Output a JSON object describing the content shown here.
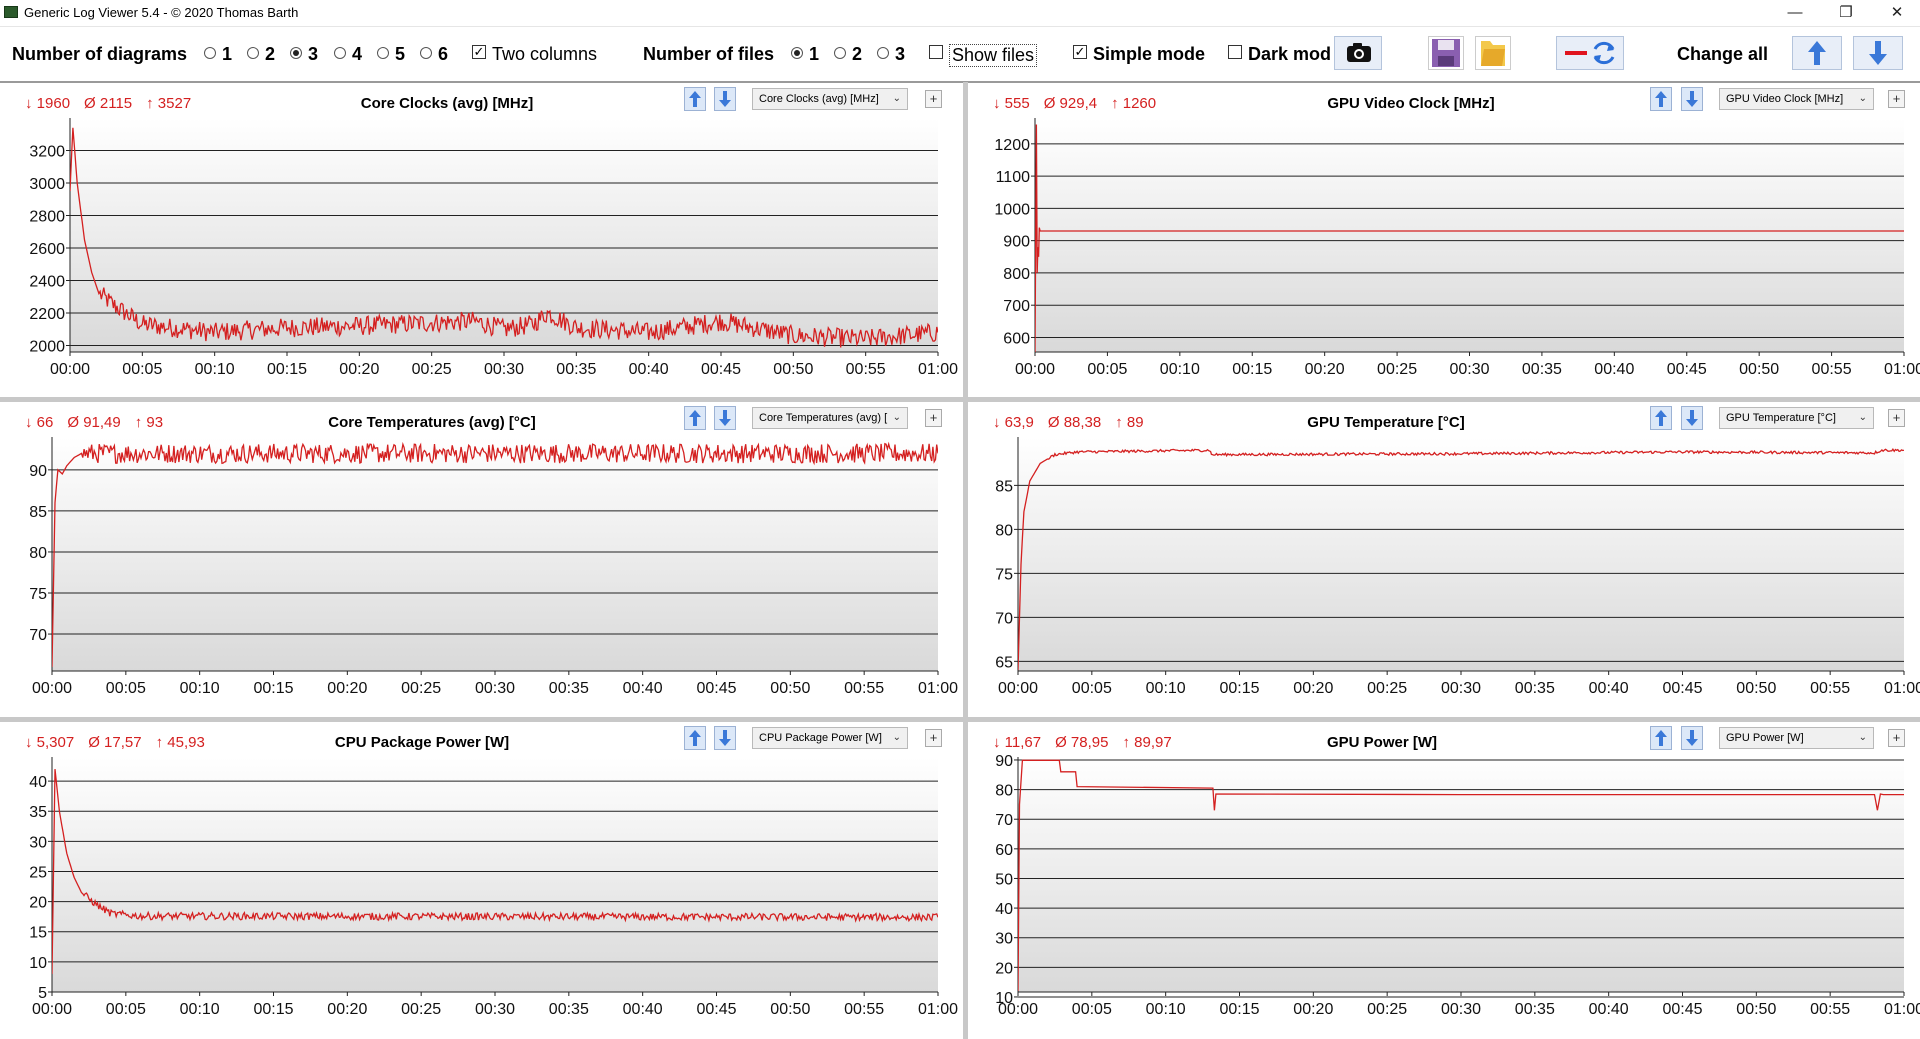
{
  "window": {
    "title": "Generic Log Viewer 5.4 - © 2020 Thomas Barth",
    "min_glyph": "—",
    "restore_glyph": "❐",
    "close_glyph": "✕"
  },
  "toolbar": {
    "diagrams_label": "Number of diagrams",
    "diagram_options": [
      "1",
      "2",
      "3",
      "4",
      "5",
      "6"
    ],
    "diagram_selected": "3",
    "two_columns_label": "Two columns",
    "two_columns_checked": true,
    "files_label": "Number of files",
    "file_options": [
      "1",
      "2",
      "3"
    ],
    "file_selected": "1",
    "show_files_label": "Show files",
    "show_files_checked": false,
    "simple_mode_label": "Simple mode",
    "simple_mode_checked": true,
    "dark_mode_label": "Dark mod",
    "dark_mode_checked": false,
    "change_all_label": "Change all",
    "icons": [
      "camera-icon",
      "save-icon",
      "folder-icon",
      "line-color-icon",
      "swap-icon",
      "arrow-up-icon",
      "arrow-down-icon"
    ]
  },
  "colors": {
    "series": "#d42020",
    "accent": "#3a78d8"
  },
  "panels": [
    {
      "id": "core-clocks",
      "stats": {
        "min": "↓ 1960",
        "avg": "Ø 2115",
        "max": "↑ 3527"
      },
      "title": "Core Clocks (avg) [MHz]",
      "select_value": "Core Clocks (avg) [MHz]"
    },
    {
      "id": "gpu-video-clock",
      "stats": {
        "min": "↓ 555",
        "avg": "Ø 929,4",
        "max": "↑ 1260"
      },
      "title": "GPU Video Clock [MHz]",
      "select_value": "GPU Video Clock [MHz]"
    },
    {
      "id": "core-temps",
      "stats": {
        "min": "↓ 66",
        "avg": "Ø 91,49",
        "max": "↑ 93"
      },
      "title": "Core Temperatures (avg) [°C]",
      "select_value": "Core Temperatures (avg) ["
    },
    {
      "id": "gpu-temp",
      "stats": {
        "min": "↓ 63,9",
        "avg": "Ø 88,38",
        "max": "↑ 89"
      },
      "title": "GPU Temperature [°C]",
      "select_value": "GPU Temperature [°C]"
    },
    {
      "id": "cpu-package-power",
      "stats": {
        "min": "↓ 5,307",
        "avg": "Ø 17,57",
        "max": "↑ 45,93"
      },
      "title": "CPU Package Power [W]",
      "select_value": "CPU Package Power [W]"
    },
    {
      "id": "gpu-power",
      "stats": {
        "min": "↓ 11,67",
        "avg": "Ø 78,95",
        "max": "↑ 89,97"
      },
      "title": "GPU Power [W]",
      "select_value": "GPU Power [W]"
    }
  ],
  "chart_data": [
    {
      "type": "line",
      "title": "Core Clocks (avg) [MHz]",
      "x_ticks": [
        "00:00",
        "00:05",
        "00:10",
        "00:15",
        "00:20",
        "00:25",
        "00:30",
        "00:35",
        "00:40",
        "00:45",
        "00:50",
        "00:55",
        "01:00"
      ],
      "xlim": [
        0,
        60
      ],
      "ylim": [
        1960,
        3400
      ],
      "y_ticks": [
        2000,
        2200,
        2400,
        2600,
        2800,
        3000,
        3200
      ],
      "grid": true,
      "series": [
        {
          "x": [
            0,
            0.2,
            0.5,
            1,
            1.5,
            2,
            3,
            4,
            5,
            10,
            15,
            20,
            25,
            28,
            30,
            32,
            33,
            35,
            40,
            45,
            50,
            55,
            60
          ],
          "y": [
            2950,
            3340,
            3000,
            2650,
            2450,
            2320,
            2250,
            2190,
            2130,
            2080,
            2110,
            2120,
            2140,
            2150,
            2100,
            2130,
            2200,
            2110,
            2080,
            2150,
            2060,
            2040,
            2080
          ],
          "noise": 60
        }
      ]
    },
    {
      "type": "line",
      "title": "GPU Video Clock [MHz]",
      "x_ticks": [
        "00:00",
        "00:05",
        "00:10",
        "00:15",
        "00:20",
        "00:25",
        "00:30",
        "00:35",
        "00:40",
        "00:45",
        "00:50",
        "00:55",
        "01:00"
      ],
      "xlim": [
        0,
        60
      ],
      "ylim": [
        555,
        1280
      ],
      "y_ticks": [
        600,
        700,
        800,
        900,
        1000,
        1100,
        1200
      ],
      "grid": true,
      "series": [
        {
          "x": [
            0,
            0.1,
            0.15,
            0.2,
            0.25,
            0.3,
            0.35,
            0.4,
            60
          ],
          "y": [
            555,
            1260,
            800,
            880,
            850,
            940,
            930,
            930,
            930
          ],
          "noise": 0
        }
      ]
    },
    {
      "type": "line",
      "title": "Core Temperatures (avg) [°C]",
      "x_ticks": [
        "00:00",
        "00:05",
        "00:10",
        "00:15",
        "00:20",
        "00:25",
        "00:30",
        "00:35",
        "00:40",
        "00:45",
        "00:50",
        "00:55",
        "01:00"
      ],
      "xlim": [
        0,
        60
      ],
      "ylim": [
        65.5,
        94
      ],
      "y_ticks": [
        70,
        75,
        80,
        85,
        90
      ],
      "grid": true,
      "series": [
        {
          "x": [
            0,
            0.2,
            0.4,
            0.7,
            1,
            1.5,
            2,
            60
          ],
          "y": [
            66,
            86,
            90,
            89.5,
            90.5,
            91.5,
            92,
            92
          ],
          "noise": 1.2
        }
      ]
    },
    {
      "type": "line",
      "title": "GPU Temperature [°C]",
      "x_ticks": [
        "00:00",
        "00:05",
        "00:10",
        "00:15",
        "00:20",
        "00:25",
        "00:30",
        "00:35",
        "00:40",
        "00:45",
        "00:50",
        "00:55",
        "01:00"
      ],
      "xlim": [
        0,
        60
      ],
      "ylim": [
        63.9,
        90.5
      ],
      "y_ticks": [
        65,
        70,
        75,
        80,
        85
      ],
      "grid": true,
      "series": [
        {
          "x": [
            0,
            0.2,
            0.4,
            0.8,
            1.5,
            2.5,
            4,
            13,
            13.1,
            30,
            45,
            58,
            58.5,
            60
          ],
          "y": [
            64,
            76,
            82,
            85.5,
            87.5,
            88.5,
            88.8,
            89,
            88.5,
            88.6,
            88.8,
            88.7,
            89,
            89
          ],
          "noise": 0.15
        }
      ]
    },
    {
      "type": "line",
      "title": "CPU Package Power [W]",
      "x_ticks": [
        "00:00",
        "00:05",
        "00:10",
        "00:15",
        "00:20",
        "00:25",
        "00:30",
        "00:35",
        "00:40",
        "00:45",
        "00:50",
        "00:55",
        "01:00"
      ],
      "xlim": [
        0,
        60
      ],
      "ylim": [
        5,
        44
      ],
      "y_ticks": [
        5,
        10,
        15,
        20,
        25,
        30,
        35,
        40
      ],
      "grid": true,
      "series": [
        {
          "x": [
            0,
            0.2,
            0.5,
            1,
            1.5,
            2,
            3,
            4,
            6,
            60
          ],
          "y": [
            8,
            42,
            35,
            28,
            24,
            21.5,
            19.5,
            18,
            17.6,
            17.4
          ],
          "noise": 0.6
        }
      ]
    },
    {
      "type": "line",
      "title": "GPU Power [W]",
      "x_ticks": [
        "00:00",
        "00:05",
        "00:10",
        "00:15",
        "00:20",
        "00:25",
        "00:30",
        "00:35",
        "00:40",
        "00:45",
        "00:50",
        "00:55",
        "01:00"
      ],
      "xlim": [
        0,
        60
      ],
      "ylim": [
        11.67,
        91
      ],
      "y_ticks": [
        10,
        20,
        30,
        40,
        50,
        60,
        70,
        80,
        90
      ],
      "grid": true,
      "series": [
        {
          "x": [
            0,
            0.1,
            0.3,
            0.5,
            2.8,
            2.9,
            3.9,
            4.0,
            13.2,
            13.3,
            13.4,
            30,
            58,
            58.2,
            58.4,
            58.6,
            60
          ],
          "y": [
            12,
            75,
            89.9,
            89.9,
            89.9,
            86,
            86,
            81,
            80.5,
            73,
            78.5,
            78.3,
            78.3,
            73,
            78.5,
            78.3,
            78.3
          ],
          "noise": 0
        }
      ]
    }
  ]
}
